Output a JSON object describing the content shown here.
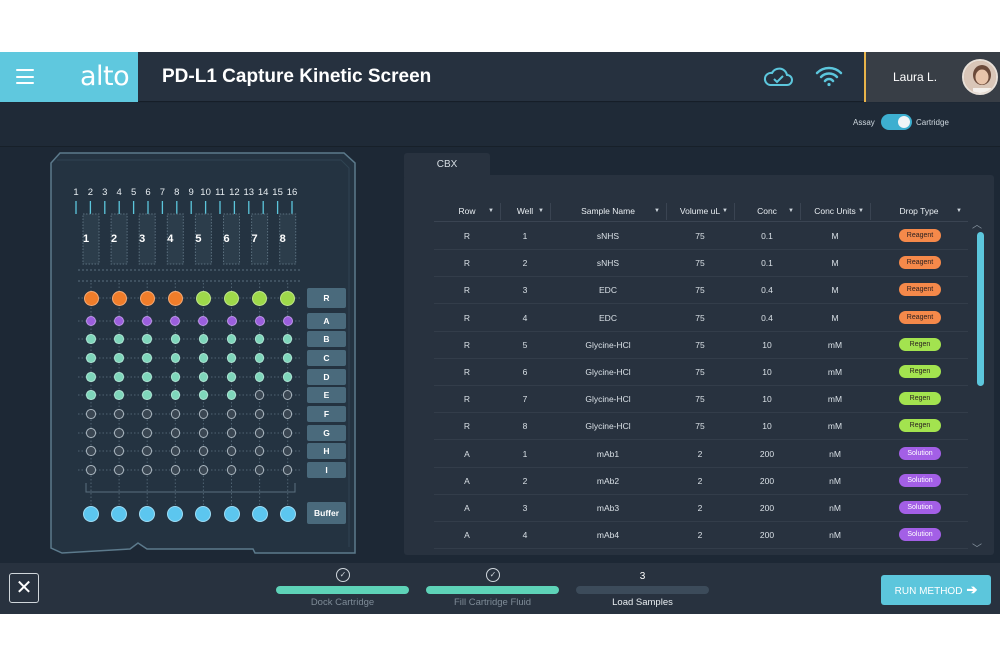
{
  "app": {
    "logo": "alto",
    "title": "PD-L1 Capture Kinetic Screen",
    "user_name": "Laura L."
  },
  "toggle": {
    "left_label": "Assay",
    "right_label": "Cartridge",
    "state": "Cartridge"
  },
  "cartridge": {
    "column_numbers": [
      "1",
      "2",
      "3",
      "4",
      "5",
      "6",
      "7",
      "8",
      "9",
      "10",
      "11",
      "12",
      "13",
      "14",
      "15",
      "16"
    ],
    "lane_numbers": [
      "1",
      "2",
      "3",
      "4",
      "5",
      "6",
      "7",
      "8"
    ],
    "row_buttons": [
      "R",
      "A",
      "B",
      "C",
      "D",
      "E",
      "F",
      "G",
      "H",
      "I"
    ],
    "buffer_label": "Buffer",
    "colors": {
      "orange": "#f07d2a",
      "green": "#9ed94a",
      "purple": "#9b5fdd",
      "teal": "#7fd6bb",
      "gray": "#5b6672",
      "blue": "#5cc6ef"
    },
    "well_rows": [
      [
        "orange",
        "orange",
        "orange",
        "orange",
        "green",
        "green",
        "green",
        "green"
      ],
      [
        "purple",
        "purple",
        "purple",
        "purple",
        "purple",
        "purple",
        "purple",
        "purple"
      ],
      [
        "teal",
        "teal",
        "teal",
        "teal",
        "teal",
        "teal",
        "teal",
        "teal"
      ],
      [
        "teal",
        "teal",
        "teal",
        "teal",
        "teal",
        "teal",
        "teal",
        "teal"
      ],
      [
        "teal",
        "teal",
        "teal",
        "teal",
        "teal",
        "teal",
        "teal",
        "teal"
      ],
      [
        "teal",
        "teal",
        "teal",
        "teal",
        "teal",
        "teal",
        "gray",
        "gray"
      ],
      [
        "gray",
        "gray",
        "gray",
        "gray",
        "gray",
        "gray",
        "gray",
        "gray"
      ],
      [
        "gray",
        "gray",
        "gray",
        "gray",
        "gray",
        "gray",
        "gray",
        "gray"
      ],
      [
        "gray",
        "gray",
        "gray",
        "gray",
        "gray",
        "gray",
        "gray",
        "gray"
      ],
      [
        "gray",
        "gray",
        "gray",
        "gray",
        "gray",
        "gray",
        "gray",
        "gray"
      ]
    ],
    "buffer_row": [
      "blue",
      "blue",
      "blue",
      "blue",
      "blue",
      "blue",
      "blue",
      "blue"
    ]
  },
  "table": {
    "tab": "CBX",
    "headers": [
      "Row",
      "Well",
      "Sample Name",
      "Volume uL",
      "Conc",
      "Conc Units",
      "Drop Type"
    ],
    "drop_colors": {
      "Reagent": "#f5894a",
      "Regen": "#a3e34f",
      "Solution": "#a35fe6"
    },
    "rows": [
      [
        "R",
        "1",
        "sNHS",
        "75",
        "0.1",
        "M",
        "Reagent"
      ],
      [
        "R",
        "2",
        "sNHS",
        "75",
        "0.1",
        "M",
        "Reagent"
      ],
      [
        "R",
        "3",
        "EDC",
        "75",
        "0.4",
        "M",
        "Reagent"
      ],
      [
        "R",
        "4",
        "EDC",
        "75",
        "0.4",
        "M",
        "Reagent"
      ],
      [
        "R",
        "5",
        "Glycine-HCl",
        "75",
        "10",
        "mM",
        "Regen"
      ],
      [
        "R",
        "6",
        "Glycine-HCl",
        "75",
        "10",
        "mM",
        "Regen"
      ],
      [
        "R",
        "7",
        "Glycine-HCl",
        "75",
        "10",
        "mM",
        "Regen"
      ],
      [
        "R",
        "8",
        "Glycine-HCl",
        "75",
        "10",
        "mM",
        "Regen"
      ],
      [
        "A",
        "1",
        "mAb1",
        "2",
        "200",
        "nM",
        "Solution"
      ],
      [
        "A",
        "2",
        "mAb2",
        "2",
        "200",
        "nM",
        "Solution"
      ],
      [
        "A",
        "3",
        "mAb3",
        "2",
        "200",
        "nM",
        "Solution"
      ],
      [
        "A",
        "4",
        "mAb4",
        "2",
        "200",
        "nM",
        "Solution"
      ]
    ]
  },
  "footer": {
    "steps": [
      {
        "label": "Dock Cartridge",
        "status": "done"
      },
      {
        "label": "Fill Cartridge Fluid",
        "status": "done"
      },
      {
        "label": "Load Samples",
        "status": "current",
        "number": "3"
      }
    ],
    "run_label": "RUN METHOD"
  }
}
